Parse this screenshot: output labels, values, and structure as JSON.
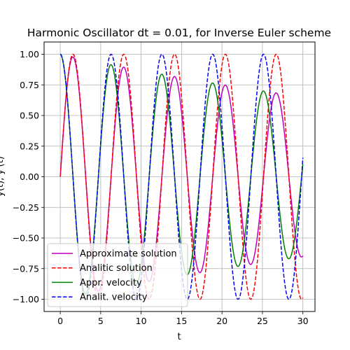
{
  "chart_data": {
    "type": "line",
    "title": "Harmonic Oscillator dt = 0.01, for Inverse Euler scheme",
    "xlabel": "t",
    "ylabel": "y(t), y'(t)",
    "xlim": [
      -2.0,
      31.5
    ],
    "ylim": [
      -1.1,
      1.1
    ],
    "xticks": [
      0,
      5,
      10,
      15,
      20,
      25,
      30
    ],
    "yticks": [
      -1.0,
      -0.75,
      -0.5,
      -0.25,
      0.0,
      0.25,
      0.5,
      0.75,
      1.0
    ],
    "xtick_labels": [
      "0",
      "5",
      "10",
      "15",
      "20",
      "25",
      "30"
    ],
    "ytick_labels": [
      "−1.00",
      "−0.75",
      "−0.50",
      "−0.25",
      "0.00",
      "0.25",
      "0.50",
      "0.75",
      "1.00"
    ],
    "grid": true,
    "legend_position": "bottom-left",
    "t_range": [
      0,
      30
    ],
    "step": 0.01,
    "series": [
      {
        "name": "Approximate solution",
        "color": "#bf00bf",
        "dashed": false,
        "function": "sin",
        "decay": 0.0142
      },
      {
        "name": "Analitic solution",
        "color": "#ff0000",
        "dashed": true,
        "function": "sin",
        "decay": 0
      },
      {
        "name": "Appr. velocity",
        "color": "#008000",
        "dashed": false,
        "function": "cos",
        "decay": 0.0142
      },
      {
        "name": "Analit. velocity",
        "color": "#0000ff",
        "dashed": true,
        "function": "cos",
        "decay": 0
      }
    ]
  }
}
